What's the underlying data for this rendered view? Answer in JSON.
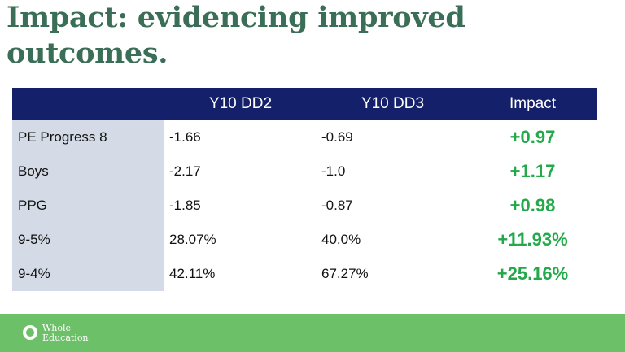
{
  "title": "Impact: evidencing improved outcomes.",
  "table": {
    "headers": [
      "",
      "Y10 DD2",
      "Y10 DD3",
      "Impact"
    ],
    "rows": [
      {
        "label": "PE Progress 8",
        "dd2": "-1.66",
        "dd3": "-0.69",
        "impact": "+0.97"
      },
      {
        "label": "Boys",
        "dd2": "-2.17",
        "dd3": "-1.0",
        "impact": "+1.17"
      },
      {
        "label": "PPG",
        "dd2": "-1.85",
        "dd3": "-0.87",
        "impact": "+0.98"
      },
      {
        "label": "9-5%",
        "dd2": "28.07%",
        "dd3": "40.0%",
        "impact": "+11.93%"
      },
      {
        "label": "9-4%",
        "dd2": "42.11%",
        "dd3": "67.27%",
        "impact": "+25.16%"
      }
    ]
  },
  "footer": {
    "logo_line1": "Whole",
    "logo_line2": "Education",
    "logo_icon": "ring-logo-icon"
  },
  "colors": {
    "title": "#3b6e57",
    "header_bg": "#15206b",
    "label_bg": "#d4dbe6",
    "impact_text": "#23a94a",
    "footer_bg": "#6cc067"
  }
}
